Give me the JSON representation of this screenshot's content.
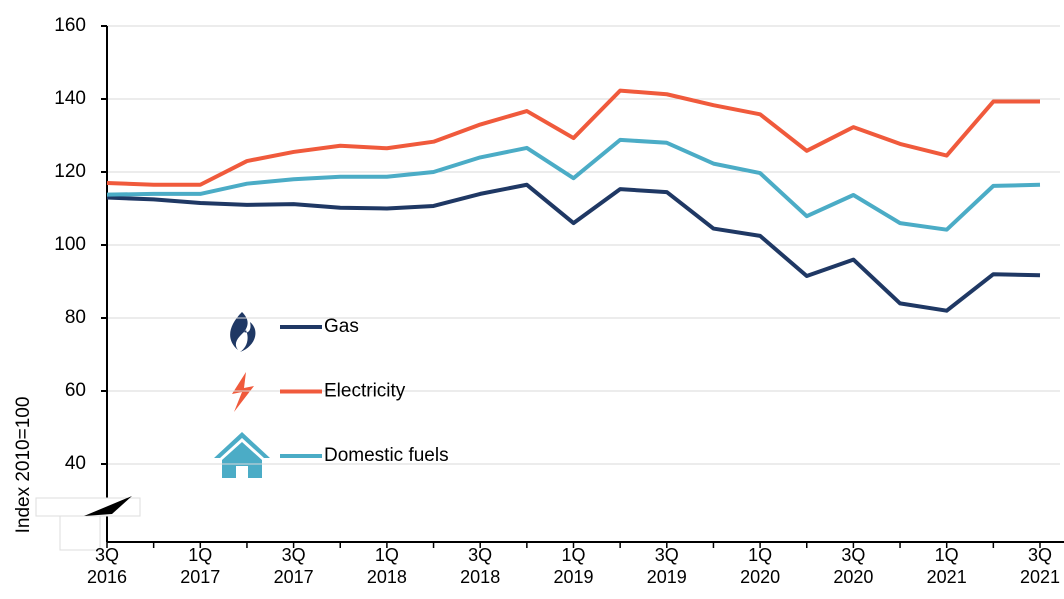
{
  "chart_data": {
    "type": "line",
    "y_label": "Index 2010=100",
    "categories": [
      "3Q 2016",
      null,
      "1Q 2017",
      null,
      "3Q 2017",
      null,
      "1Q 2018",
      null,
      "3Q 2018",
      null,
      "1Q 2019",
      null,
      "3Q 2019",
      null,
      "1Q 2020",
      null,
      "3Q 2020",
      null,
      "1Q 2021",
      null,
      "3Q 2021"
    ],
    "series": [
      {
        "name": "Gas",
        "color": "#1f3864",
        "values": [
          113,
          112.5,
          111.5,
          111,
          111.2,
          110.2,
          110,
          110.7,
          114,
          116.5,
          106,
          115.3,
          114.5,
          104.5,
          102.5,
          91.5,
          96,
          84,
          82,
          92,
          91.7
        ]
      },
      {
        "name": "Electricity",
        "color": "#f05a3c",
        "values": [
          117,
          116.5,
          116.5,
          123,
          125.5,
          127.2,
          126.5,
          128.3,
          133,
          136.7,
          129.3,
          142.3,
          141.3,
          138.3,
          135.8,
          125.8,
          132.3,
          127.7,
          124.5,
          139.3,
          139.3
        ]
      },
      {
        "name": "Domestic fuels",
        "color": "#4bacc6",
        "values": [
          113.8,
          114,
          114,
          116.8,
          118,
          118.7,
          118.7,
          120,
          124,
          126.6,
          118.3,
          128.8,
          128,
          122.3,
          119.7,
          107.9,
          113.7,
          106,
          104.2,
          116.2,
          116.5
        ]
      }
    ],
    "ylim": [
      20,
      160
    ],
    "yticks": [
      40,
      60,
      80,
      100,
      120,
      140,
      160
    ],
    "grid": true
  }
}
